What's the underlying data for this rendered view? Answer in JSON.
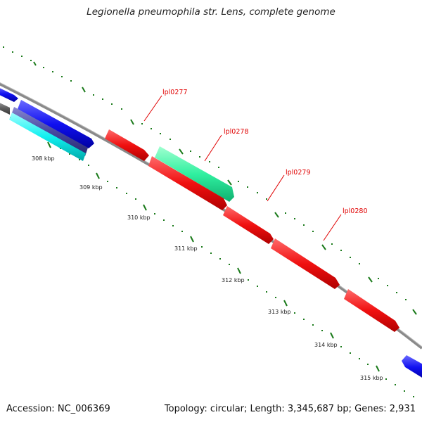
{
  "title": "Legionella pneumophila str. Lens, complete genome",
  "accession": "Accession: NC_006369",
  "summary": "Topology: circular; Length: 3,345,687 bp; Genes: 2,931",
  "scale_labels": [
    "308 kbp",
    "309 kbp",
    "310 kbp",
    "311 kbp",
    "312 kbp",
    "313 kbp",
    "314 kbp",
    "315 kbp"
  ],
  "gene_labels": [
    "lpl0277",
    "lpl0278",
    "lpl0279",
    "lpl0280"
  ],
  "colors": {
    "backbone": "#8a8a8a",
    "red": "#f01010",
    "teal": "#30f0a0",
    "blue": "#1010f0",
    "cyan": "#10f0f0",
    "slate": "#4848a0",
    "grey": "#606060",
    "tick": "#1a7a1a",
    "label": "#e00000"
  }
}
